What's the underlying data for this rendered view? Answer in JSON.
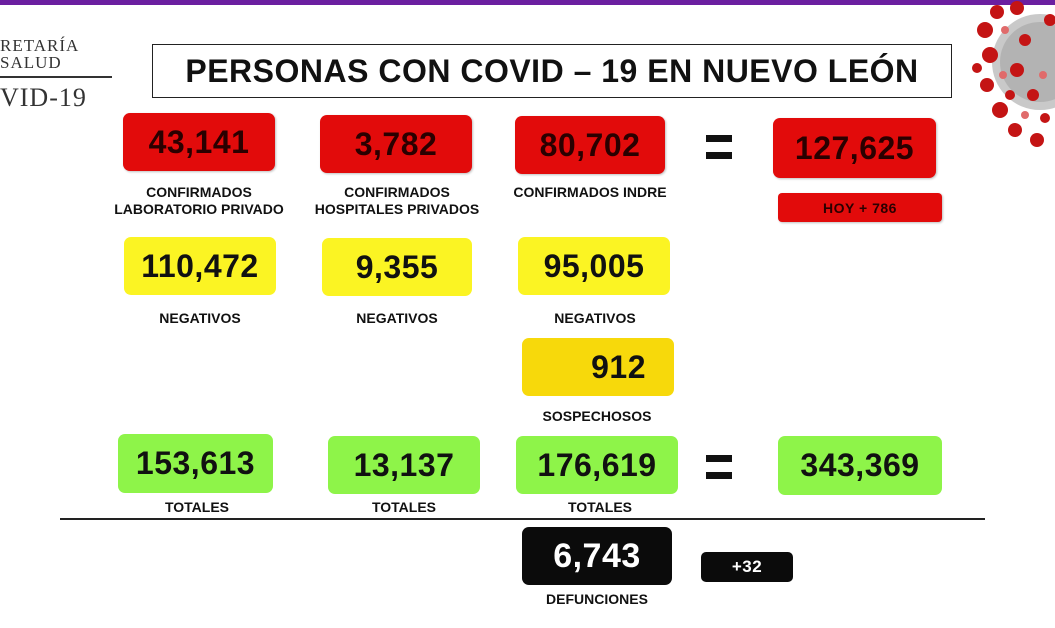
{
  "logo": {
    "line1": "RETARÍA",
    "line2": "SALUD",
    "line3": "VID-19"
  },
  "title": "PERSONAS CON COVID – 19 EN NUEVO LEÓN",
  "confirmed": {
    "private_lab": {
      "value": "43,141",
      "label1": "CONFIRMADOS",
      "label2": "LABORATORIO PRIVADO"
    },
    "private_hospitals": {
      "value": "3,782",
      "label1": "CONFIRMADOS",
      "label2": "HOSPITALES PRIVADOS"
    },
    "indre": {
      "value": "80,702",
      "label": "CONFIRMADOS INDRE"
    },
    "total": {
      "value": "127,625",
      "today": "HOY + 786"
    }
  },
  "negatives": {
    "private_lab": {
      "value": "110,472",
      "label": "NEGATIVOS"
    },
    "private_hospitals": {
      "value": "9,355",
      "label": "NEGATIVOS"
    },
    "indre": {
      "value": "95,005",
      "label": "NEGATIVOS"
    }
  },
  "suspects": {
    "value": "912",
    "label": "SOSPECHOSOS"
  },
  "totals": {
    "private_lab": {
      "value": "153,613",
      "label": "TOTALES"
    },
    "private_hospitals": {
      "value": "13,137",
      "label": "TOTALES"
    },
    "indre": {
      "value": "176,619",
      "label": "TOTALES"
    },
    "grand_total": "343,369"
  },
  "deaths": {
    "value": "6,743",
    "label": "DEFUNCIONES",
    "today": "+32"
  },
  "colors": {
    "red": "#e20b0b",
    "yellow": "#fbf423",
    "gold": "#f7d90b",
    "green": "#8ef449",
    "black": "#0b0b0b",
    "top_bar": "#6b1fa0"
  }
}
